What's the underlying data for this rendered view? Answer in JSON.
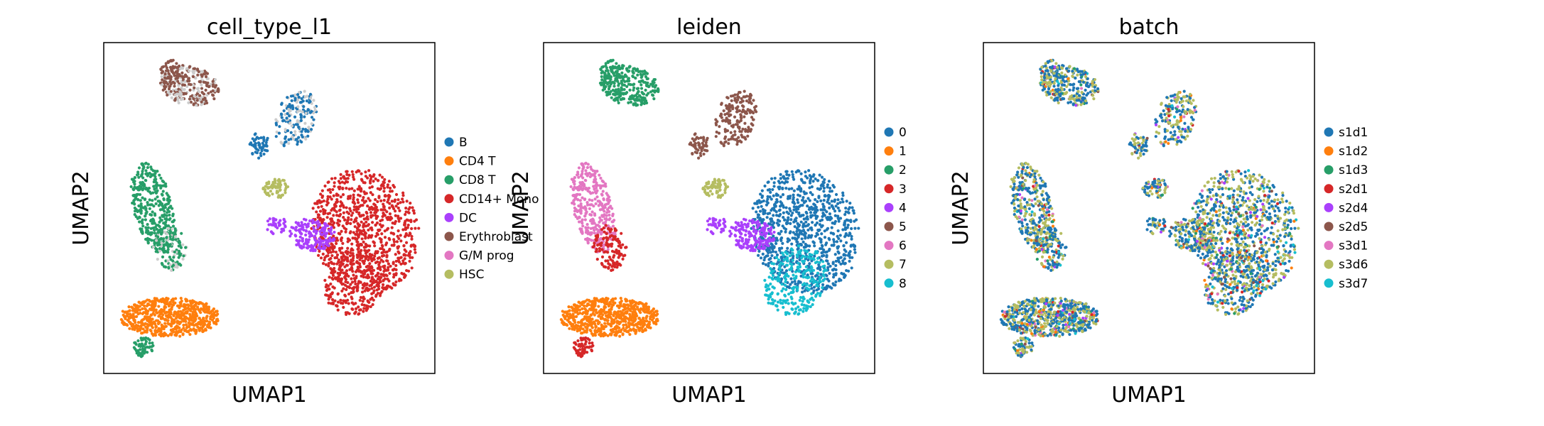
{
  "chart_data": [
    {
      "type": "scatter",
      "title": "cell_type_l1",
      "xlabel": "UMAP1",
      "ylabel": "UMAP2",
      "grid": false,
      "legend_position": "right",
      "series": [
        {
          "name": "B",
          "color": "#1f77b4"
        },
        {
          "name": "CD4 T",
          "color": "#ff7f0e"
        },
        {
          "name": "CD8 T",
          "color": "#279e68"
        },
        {
          "name": "CD14+ Mono",
          "color": "#d62728"
        },
        {
          "name": "DC",
          "color": "#aa40fc"
        },
        {
          "name": "Erythroblast",
          "color": "#8c564b"
        },
        {
          "name": "G/M prog",
          "color": "#e377c2"
        },
        {
          "name": "HSC",
          "color": "#b5bd61"
        }
      ]
    },
    {
      "type": "scatter",
      "title": "leiden",
      "xlabel": "UMAP1",
      "ylabel": "UMAP2",
      "grid": false,
      "legend_position": "right",
      "series": [
        {
          "name": "0",
          "color": "#1f77b4"
        },
        {
          "name": "1",
          "color": "#ff7f0e"
        },
        {
          "name": "2",
          "color": "#279e68"
        },
        {
          "name": "3",
          "color": "#d62728"
        },
        {
          "name": "4",
          "color": "#aa40fc"
        },
        {
          "name": "5",
          "color": "#8c564b"
        },
        {
          "name": "6",
          "color": "#e377c2"
        },
        {
          "name": "7",
          "color": "#b5bd61"
        },
        {
          "name": "8",
          "color": "#17becf"
        }
      ]
    },
    {
      "type": "scatter",
      "title": "batch",
      "xlabel": "UMAP1",
      "ylabel": "UMAP2",
      "grid": false,
      "legend_position": "right",
      "series": [
        {
          "name": "s1d1",
          "color": "#1f77b4"
        },
        {
          "name": "s1d2",
          "color": "#ff7f0e"
        },
        {
          "name": "s1d3",
          "color": "#279e68"
        },
        {
          "name": "s2d1",
          "color": "#d62728"
        },
        {
          "name": "s2d4",
          "color": "#aa40fc"
        },
        {
          "name": "s2d5",
          "color": "#8c564b"
        },
        {
          "name": "s3d1",
          "color": "#e377c2"
        },
        {
          "name": "s3d6",
          "color": "#b5bd61"
        },
        {
          "name": "s3d7",
          "color": "#17becf"
        }
      ]
    }
  ]
}
